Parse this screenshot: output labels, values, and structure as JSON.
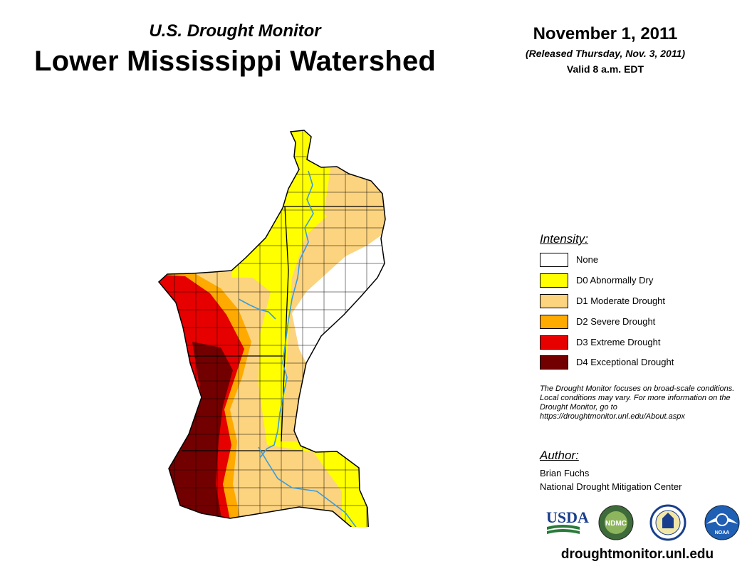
{
  "header": {
    "subtitle": "U.S. Drought Monitor",
    "title": "Lower Mississippi Watershed",
    "date": "November 1, 2011",
    "released": "(Released Thursday, Nov. 3, 2011)",
    "valid": "Valid 8 a.m. EDT"
  },
  "legend": {
    "title": "Intensity:",
    "items": [
      {
        "label": "None",
        "color": "#ffffff"
      },
      {
        "label": "D0 Abnormally Dry",
        "color": "#ffff00"
      },
      {
        "label": "D1 Moderate Drought",
        "color": "#fcd37f"
      },
      {
        "label": "D2 Severe Drought",
        "color": "#ffaa00"
      },
      {
        "label": "D3 Extreme Drought",
        "color": "#e60000"
      },
      {
        "label": "D4 Exceptional Drought",
        "color": "#730000"
      }
    ]
  },
  "note": "The Drought Monitor focuses on broad-scale conditions. Local conditions may vary. For more information on the Drought Monitor, go to https://droughtmonitor.unl.edu/About.aspx",
  "author": {
    "heading": "Author:",
    "name": "Brian Fuchs",
    "organization": "National Drought Mitigation Center"
  },
  "logos": [
    {
      "name": "usda-logo",
      "text": "USDA"
    },
    {
      "name": "ndmc-logo",
      "text": "NDMC"
    },
    {
      "name": "doc-seal-logo",
      "text": ""
    },
    {
      "name": "noaa-logo",
      "text": "NOAA"
    }
  ],
  "website": "droughtmonitor.unl.edu",
  "colors": {
    "river": "#3a9bdc",
    "outline": "#000000"
  }
}
